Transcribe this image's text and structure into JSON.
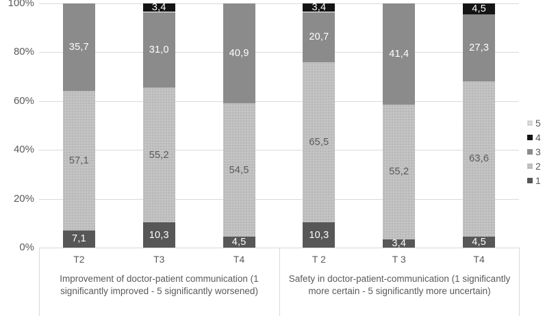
{
  "chart_data": {
    "type": "bar",
    "subtype": "stacked-100-percent",
    "title": "",
    "xlabel": "",
    "ylabel": "",
    "ylim": [
      0,
      100
    ],
    "y_ticks": [
      "0%",
      "20%",
      "40%",
      "60%",
      "80%",
      "100%"
    ],
    "grid": "horizontal",
    "legend_position": "right",
    "series_order": [
      "1",
      "2",
      "3",
      "4",
      "5"
    ],
    "legend": [
      "5",
      "4",
      "3",
      "2",
      "1"
    ],
    "colors": {
      "1": "#575757",
      "2": "#c3c3c3",
      "3": "#8b8b8b",
      "4": "#141414",
      "5": "#dcdcdc"
    },
    "label_colors": {
      "1": "#ffffff",
      "2": "#595959",
      "3": "#ffffff",
      "4": "#ffffff",
      "5": "#595959"
    },
    "axis_text_color": "#595959",
    "gridline_color": "#d9d9d9",
    "groups": [
      {
        "label": "Improvement of doctor-patient communication (1 significantly improved -  5 significantly worsened)",
        "bars": [
          {
            "category": "T2",
            "segments": [
              {
                "series": "1",
                "value": 7.1,
                "label": "7,1"
              },
              {
                "series": "2",
                "value": 57.1,
                "label": "57,1"
              },
              {
                "series": "3",
                "value": 35.7,
                "label": "35,7"
              }
            ]
          },
          {
            "category": "T3",
            "segments": [
              {
                "series": "1",
                "value": 10.3,
                "label": "10,3"
              },
              {
                "series": "2",
                "value": 55.2,
                "label": "55,2"
              },
              {
                "series": "3",
                "value": 31.0,
                "label": "31,0"
              },
              {
                "series": "4",
                "value": 3.4,
                "label": "3,4"
              }
            ]
          },
          {
            "category": "T4",
            "segments": [
              {
                "series": "1",
                "value": 4.5,
                "label": "4,5"
              },
              {
                "series": "2",
                "value": 54.5,
                "label": "54,5"
              },
              {
                "series": "3",
                "value": 40.9,
                "label": "40,9"
              }
            ]
          }
        ]
      },
      {
        "label": "Safety in doctor-patient-communication (1 significantly more certain - 5 significantly more uncertain)",
        "bars": [
          {
            "category": "T 2",
            "segments": [
              {
                "series": "1",
                "value": 10.3,
                "label": "10,3"
              },
              {
                "series": "2",
                "value": 65.5,
                "label": "65,5"
              },
              {
                "series": "3",
                "value": 20.7,
                "label": "20,7"
              },
              {
                "series": "4",
                "value": 3.4,
                "label": "3,4"
              }
            ]
          },
          {
            "category": "T 3",
            "segments": [
              {
                "series": "1",
                "value": 3.4,
                "label": "3,4"
              },
              {
                "series": "2",
                "value": 55.2,
                "label": "55,2"
              },
              {
                "series": "3",
                "value": 41.4,
                "label": "41,4"
              }
            ]
          },
          {
            "category": "T4",
            "segments": [
              {
                "series": "1",
                "value": 4.5,
                "label": "4,5"
              },
              {
                "series": "2",
                "value": 63.6,
                "label": "63,6"
              },
              {
                "series": "3",
                "value": 27.3,
                "label": "27,3"
              },
              {
                "series": "4",
                "value": 4.5,
                "label": "4,5"
              }
            ]
          }
        ]
      }
    ]
  }
}
